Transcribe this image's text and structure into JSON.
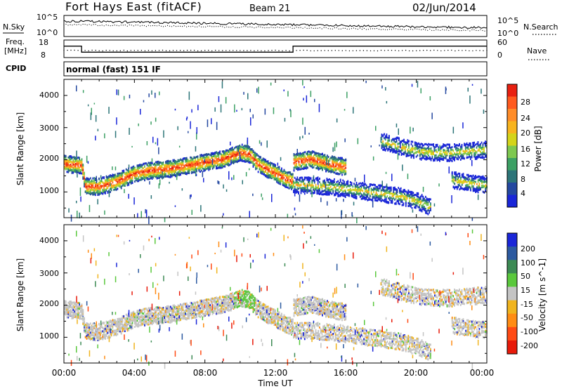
{
  "header": {
    "title": "Fort Hays East (fitACF)",
    "beam": "Beam 21",
    "date": "02/Jun/2014"
  },
  "top_panels": {
    "nsky_label": "N.Sky",
    "nsky_ticks": [
      "10^5",
      "10^0"
    ],
    "nsearch_label": "N.Search",
    "freq_label_line1": "Freq.",
    "freq_label_line2": "[MHz]",
    "freq_ticks": [
      "18",
      "8"
    ],
    "nave_label": "Nave",
    "nave_ticks": [
      "60",
      "0"
    ],
    "cpid_label": "CPID",
    "cpid_text": "normal (fast) 151 IF"
  },
  "axes": {
    "xlabel": "Time UT",
    "x_ticks": [
      "00:00",
      "04:00",
      "08:00",
      "12:00",
      "16:00",
      "20:00",
      "00:00"
    ],
    "ylabel": "Slant Range [km]",
    "y_ticks": [
      "1000",
      "2000",
      "3000",
      "4000"
    ]
  },
  "power_scale": {
    "label": "Power [dB]",
    "ticks": [
      "28",
      "24",
      "20",
      "16",
      "12",
      "8",
      "4"
    ],
    "colors": [
      "#e82010",
      "#ff5a1e",
      "#ff8c28",
      "#f8b41e",
      "#d4d41a",
      "#7ec850",
      "#3ca064",
      "#2c7478",
      "#2448a0",
      "#1a26d8"
    ]
  },
  "velocity_scale": {
    "label": "Velocity [m s^-1]",
    "ticks": [
      "200",
      "100",
      "50",
      "15",
      "-15",
      "-50",
      "-100",
      "-200"
    ],
    "colors": [
      "#1a26d8",
      "#2c5aa0",
      "#3c8a54",
      "#5ac83c",
      "#c4c4c4",
      "#f0b41e",
      "#ff8c14",
      "#ff4a14",
      "#e81a0a"
    ]
  },
  "chart_data": {
    "type": "heatmap",
    "title": "Fort Hays East (fitACF)",
    "xlabel": "Time UT",
    "ylabel": "Slant Range [km]",
    "xlim": [
      0,
      24
    ],
    "ylim": [
      200,
      4500
    ],
    "freq_mhz_segments": [
      {
        "start_h": 0,
        "end_h": 1.0,
        "value": 15
      },
      {
        "start_h": 1.0,
        "end_h": 13.0,
        "value": 10.5
      },
      {
        "start_h": 13.0,
        "end_h": 24,
        "value": 15
      }
    ],
    "nave_approx": 2,
    "echo_bands": [
      {
        "name": "main",
        "points": [
          [
            0,
            1900
          ],
          [
            1,
            1850
          ],
          [
            1.2,
            1200
          ],
          [
            2,
            1200
          ],
          [
            3,
            1350
          ],
          [
            4,
            1600
          ],
          [
            5,
            1700
          ],
          [
            6,
            1750
          ],
          [
            7,
            1850
          ],
          [
            8,
            1950
          ],
          [
            9,
            2050
          ],
          [
            10,
            2250
          ],
          [
            10.5,
            2200
          ],
          [
            11,
            1900
          ],
          [
            12,
            1600
          ],
          [
            12.5,
            1450
          ],
          [
            13,
            1350
          ],
          [
            13,
            1950
          ],
          [
            14,
            2050
          ],
          [
            15,
            1900
          ],
          [
            16,
            1800
          ]
        ]
      },
      {
        "name": "lower",
        "points": [
          [
            13,
            1250
          ],
          [
            15,
            1200
          ],
          [
            17,
            1050
          ],
          [
            19,
            900
          ],
          [
            20,
            750
          ],
          [
            20.8,
            550
          ]
        ]
      },
      {
        "name": "upper-right",
        "points": [
          [
            18,
            2600
          ],
          [
            19,
            2450
          ],
          [
            20,
            2300
          ],
          [
            21,
            2250
          ],
          [
            22,
            2250
          ],
          [
            23,
            2300
          ],
          [
            24,
            2350
          ]
        ]
      },
      {
        "name": "far-right",
        "points": [
          [
            22,
            1400
          ],
          [
            23,
            1300
          ],
          [
            24,
            1250
          ]
        ]
      }
    ]
  }
}
